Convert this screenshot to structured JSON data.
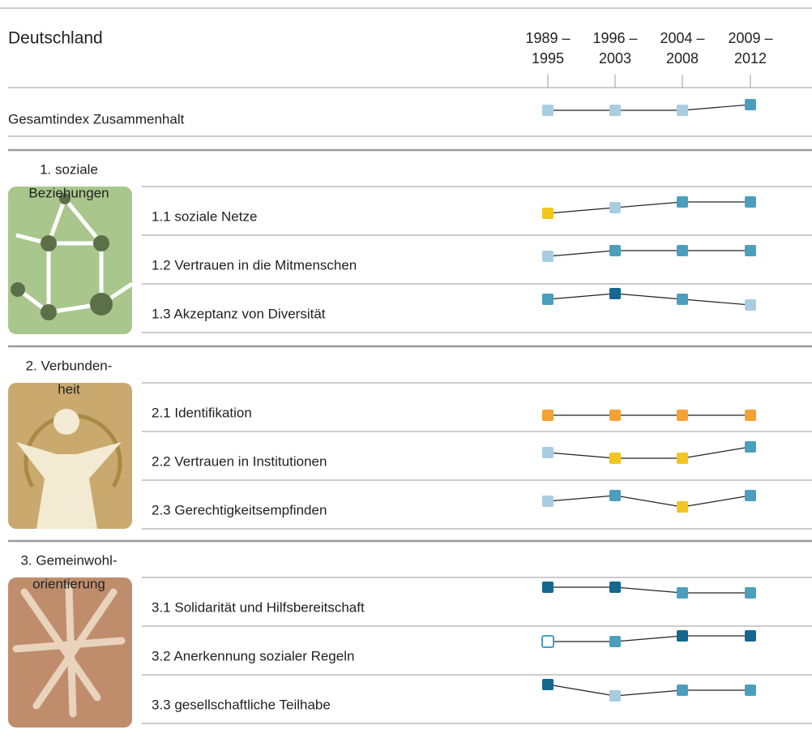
{
  "title": "Deutschland",
  "columns": [
    [
      "1989 –",
      "1995"
    ],
    [
      "1996 –",
      "2003"
    ],
    [
      "2004 –",
      "2008"
    ],
    [
      "2009 –",
      "2012"
    ]
  ],
  "level_colors": [
    "#f5a133",
    "#f2c61f",
    "#a8cde0",
    "#4a9fbf",
    "#14688f"
  ],
  "overall": {
    "label": "Gesamtindex Zusammenhalt",
    "levels": [
      3,
      3,
      3,
      4
    ]
  },
  "sections": [
    {
      "title": [
        "1. soziale",
        "Beziehungen"
      ],
      "rows": [
        {
          "label": "1.1 soziale Netze",
          "levels": [
            2,
            3,
            4,
            4
          ]
        },
        {
          "label": "1.2 Vertrauen in die Mitmenschen",
          "levels": [
            3,
            4,
            4,
            4
          ]
        },
        {
          "label": "1.3 Akzeptanz von Diversität",
          "levels": [
            4,
            5,
            4,
            3
          ]
        }
      ]
    },
    {
      "title": [
        "2. Verbunden-",
        "heit"
      ],
      "rows": [
        {
          "label": "2.1 Identifikation",
          "levels": [
            1,
            1,
            1,
            1
          ]
        },
        {
          "label": "2.2 Vertrauen in Institutionen",
          "levels": [
            3,
            2,
            2,
            4
          ]
        },
        {
          "label": "2.3 Gerechtigkeitsempfinden",
          "levels": [
            3,
            4,
            2,
            4
          ]
        }
      ]
    },
    {
      "title": [
        "3. Gemeinwohl-",
        "orientierung"
      ],
      "rows": [
        {
          "label": "3.1 Solidarität und Hilfsbereitschaft",
          "levels": [
            5,
            5,
            4,
            4
          ]
        },
        {
          "label": "3.2 Anerkennung sozialer Regeln",
          "levels": [
            4,
            4,
            5,
            5
          ],
          "open_marks": [
            0
          ]
        },
        {
          "label": "3.3 gesellschaftliche Teilhabe",
          "levels": [
            5,
            3,
            4,
            4
          ]
        }
      ]
    }
  ]
}
